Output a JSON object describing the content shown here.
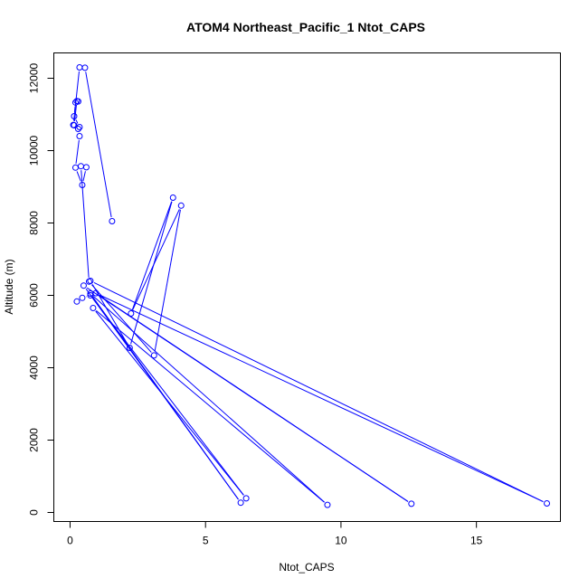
{
  "chart_data": {
    "type": "line",
    "title": "ATOM4 Northeast_Pacific_1 Ntot_CAPS",
    "xlabel": "Ntot_CAPS",
    "ylabel": "Altitude (m)",
    "xlim": [
      -0.6,
      18.1
    ],
    "ylim": [
      -250,
      12700
    ],
    "xticks": [
      0,
      5,
      10,
      15
    ],
    "yticks": [
      0,
      2000,
      4000,
      6000,
      8000,
      10000,
      12000
    ],
    "grid": false,
    "legend": "none",
    "markers": "open-circle",
    "color": "#0000ff",
    "series": [
      {
        "x": [
          0.25,
          0.45,
          0.75,
          6.5,
          0.85,
          9.5,
          0.75,
          6.3,
          0.5,
          12.6,
          0.95,
          17.6,
          0.75,
          2.2,
          3.8,
          2.25,
          4.1,
          3.1,
          0.7,
          0.4,
          0.6,
          0.45,
          0.2,
          0.35,
          0.3,
          0.35,
          0.15,
          0.2,
          0.3,
          0.25,
          0.15,
          0.12,
          0.35,
          0.55,
          1.55
        ],
        "y": [
          5830,
          5930,
          6000,
          390,
          5650,
          210,
          6050,
          270,
          6270,
          240,
          6060,
          250,
          6400,
          4550,
          8700,
          5500,
          8480,
          4340,
          6380,
          9570,
          9540,
          9050,
          9530,
          10400,
          10600,
          10650,
          10950,
          11330,
          11360,
          11370,
          10700,
          10710,
          12300,
          12290,
          8050
        ]
      }
    ]
  }
}
